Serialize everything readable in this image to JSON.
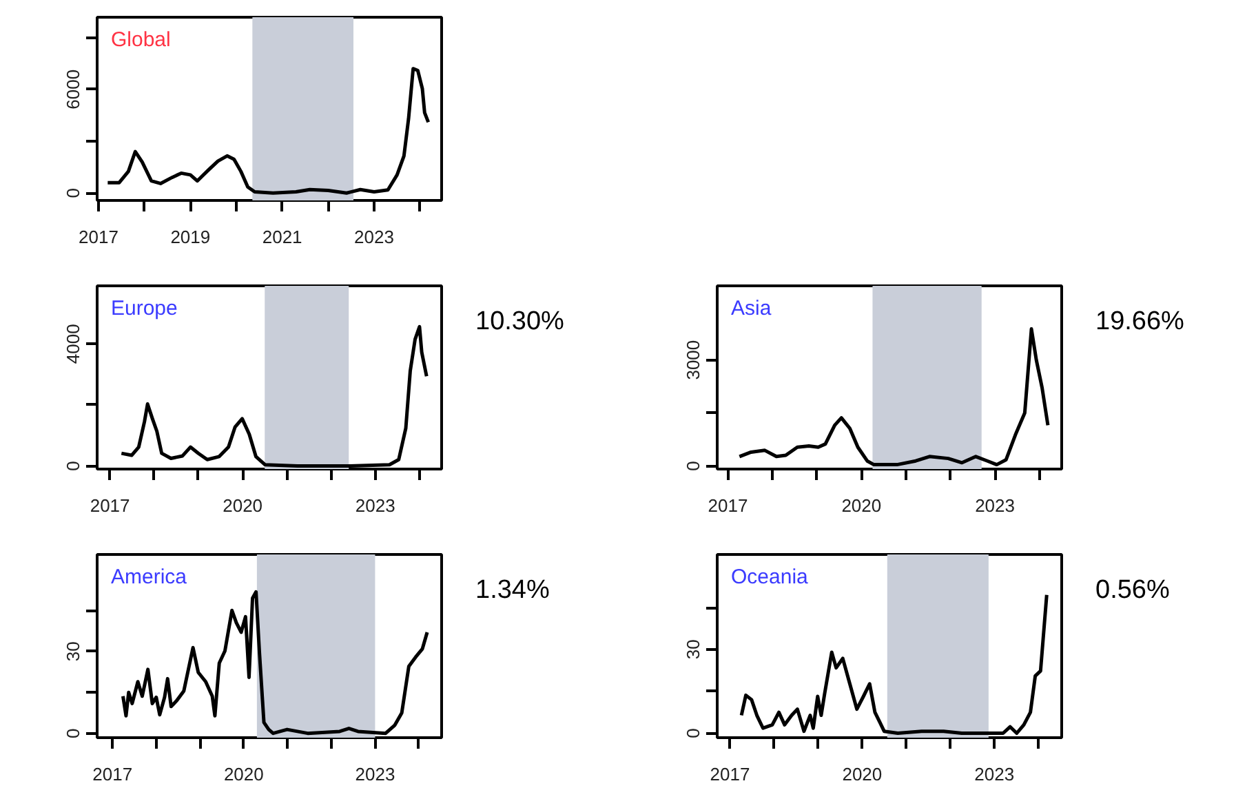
{
  "chart_data": [
    {
      "type": "line",
      "title": "Global",
      "xlim": [
        2016.97,
        2024.47
      ],
      "ylim": [
        -430,
        10180
      ],
      "xticks": [
        2017,
        {
          "value": 2018,
          "label": null
        },
        2019,
        {
          "value": 2020,
          "label": null
        },
        2021,
        {
          "value": 2022,
          "label": null
        },
        2023,
        {
          "value": 2024,
          "label": null
        }
      ],
      "yticks": [
        0,
        {
          "value": 3000,
          "label": null
        },
        6000,
        {
          "value": 9000,
          "label": null
        }
      ],
      "grid": false,
      "bands": [
        {
          "axis": "x",
          "from": 2020.35,
          "to": 2022.55,
          "color": "#c9ced9"
        }
      ],
      "series": [
        {
          "color": "#000000",
          "x": [
            2017.2,
            2017.45,
            2017.65,
            2017.8,
            2017.95,
            2018.15,
            2018.35,
            2018.6,
            2018.8,
            2019.0,
            2019.15,
            2019.4,
            2019.6,
            2019.8,
            2019.95,
            2020.1,
            2020.25,
            2020.4,
            2020.8,
            2021.3,
            2021.6,
            2022.0,
            2022.4,
            2022.7,
            2023.0,
            2023.3,
            2023.5,
            2023.65,
            2023.75,
            2023.85,
            2023.95,
            2024.05,
            2024.1,
            2024.18
          ],
          "values": [
            600,
            600,
            1250,
            2400,
            1800,
            700,
            550,
            900,
            1150,
            1050,
            700,
            1350,
            1850,
            2150,
            1950,
            1250,
            350,
            70,
            0,
            70,
            200,
            150,
            0,
            200,
            70,
            180,
            1050,
            2150,
            4300,
            7200,
            7100,
            6050,
            4650,
            4100
          ]
        }
      ]
    },
    {
      "type": "line",
      "title": "Europe",
      "annotations": [
        "10.30%"
      ],
      "xlim": [
        2016.71,
        2024.5
      ],
      "ylim": [
        -100,
        5900
      ],
      "xticks": [
        2017,
        {
          "value": 2018,
          "label": null
        },
        {
          "value": 2019,
          "label": null
        },
        2020,
        {
          "value": 2021,
          "label": null
        },
        {
          "value": 2022,
          "label": null
        },
        2023,
        {
          "value": 2024,
          "label": null
        }
      ],
      "yticks": [
        0,
        {
          "value": 2000,
          "label": null
        },
        4000
      ],
      "grid": false,
      "bands": [
        {
          "axis": "x",
          "from": 2020.5,
          "to": 2022.4,
          "color": "#c9ced9"
        }
      ],
      "series": [
        {
          "color": "#000000",
          "x": [
            2017.26,
            2017.49,
            2017.65,
            2017.78,
            2017.85,
            2017.96,
            2018.06,
            2018.17,
            2018.38,
            2018.64,
            2018.82,
            2019.0,
            2019.2,
            2019.47,
            2019.68,
            2019.83,
            2019.99,
            2020.15,
            2020.3,
            2020.51,
            2021.24,
            2022.39,
            2023.32,
            2023.53,
            2023.69,
            2023.79,
            2023.9,
            2024.0,
            2024.05,
            2024.16
          ],
          "values": [
            415,
            350,
            620,
            1450,
            2030,
            1550,
            1140,
            415,
            250,
            330,
            620,
            415,
            210,
            310,
            620,
            1280,
            1550,
            1040,
            310,
            40,
            0,
            0,
            40,
            210,
            1240,
            3110,
            4150,
            4560,
            3730,
            2940
          ]
        }
      ]
    },
    {
      "type": "line",
      "title": "Asia",
      "annotations": [
        "19.66%"
      ],
      "xlim": [
        2016.76,
        2024.5
      ],
      "ylim": [
        -90,
        5100
      ],
      "xticks": [
        2017,
        {
          "value": 2018,
          "label": null
        },
        {
          "value": 2019,
          "label": null
        },
        2020,
        {
          "value": 2021,
          "label": null
        },
        {
          "value": 2022,
          "label": null
        },
        2023,
        {
          "value": 2024,
          "label": null
        }
      ],
      "yticks": [
        0,
        {
          "value": 1500,
          "label": null
        },
        3000
      ],
      "grid": false,
      "bands": [
        {
          "axis": "x",
          "from": 2020.25,
          "to": 2022.7,
          "color": "#c9ced9"
        }
      ],
      "series": [
        {
          "color": "#000000",
          "x": [
            2017.26,
            2017.52,
            2017.83,
            2018.09,
            2018.3,
            2018.56,
            2018.82,
            2019.03,
            2019.19,
            2019.4,
            2019.55,
            2019.74,
            2019.92,
            2020.13,
            2020.28,
            2020.8,
            2021.22,
            2021.53,
            2021.95,
            2022.26,
            2022.57,
            2022.83,
            2023.04,
            2023.25,
            2023.46,
            2023.67,
            2023.82,
            2023.93,
            2024.06,
            2024.19
          ],
          "values": [
            265,
            390,
            440,
            265,
            300,
            530,
            565,
            530,
            620,
            1150,
            1360,
            1060,
            530,
            140,
            35,
            35,
            140,
            265,
            210,
            90,
            265,
            140,
            35,
            175,
            880,
            1500,
            3880,
            3000,
            2210,
            1150
          ]
        }
      ]
    },
    {
      "type": "line",
      "title": "America",
      "annotations": [
        "1.34%"
      ],
      "xlim": [
        2016.65,
        2024.52
      ],
      "ylim": [
        -1.6,
        65.5
      ],
      "xticks": [
        2017,
        {
          "value": 2018,
          "label": null
        },
        {
          "value": 2019,
          "label": null
        },
        2020,
        {
          "value": 2021,
          "label": null
        },
        {
          "value": 2022,
          "label": null
        },
        2023,
        {
          "value": 2024,
          "label": null
        }
      ],
      "yticks": [
        0,
        {
          "value": 15,
          "label": null
        },
        30,
        {
          "value": 45,
          "label": null
        }
      ],
      "grid": false,
      "bands": [
        {
          "axis": "x",
          "from": 2020.3,
          "to": 2023.0,
          "color": "#c9ced9"
        }
      ],
      "series": [
        {
          "color": "#000000",
          "x": [
            2017.24,
            2017.31,
            2017.37,
            2017.45,
            2017.58,
            2017.68,
            2017.81,
            2017.91,
            2018.0,
            2018.08,
            2018.19,
            2018.26,
            2018.34,
            2018.47,
            2018.63,
            2018.84,
            2018.96,
            2019.13,
            2019.28,
            2019.34,
            2019.44,
            2019.57,
            2019.73,
            2019.83,
            2019.94,
            2020.04,
            2020.12,
            2020.2,
            2020.28,
            2020.36,
            2020.46,
            2020.57,
            2020.67,
            2020.99,
            2021.46,
            2022.19,
            2022.4,
            2022.61,
            2023.24,
            2023.45,
            2023.61,
            2023.77,
            2023.93,
            2024.08,
            2024.19
          ],
          "values": [
            13.6,
            6.4,
            15,
            10.9,
            18.9,
            13.6,
            23.4,
            10.9,
            13.2,
            6.8,
            13.2,
            20,
            9.8,
            12,
            15.5,
            31.4,
            22.3,
            18.9,
            13.6,
            6.4,
            25.7,
            30.2,
            45,
            40.5,
            37,
            42.7,
            20.5,
            49.5,
            51.8,
            29,
            4,
            1.4,
            0,
            1.4,
            0,
            0.7,
            1.8,
            0.7,
            0,
            3,
            7.5,
            24.5,
            28,
            30.9,
            37
          ]
        }
      ]
    },
    {
      "type": "line",
      "title": "Oceania",
      "annotations": [
        "0.56%"
      ],
      "xlim": [
        2016.71,
        2024.53
      ],
      "ylim": [
        -1.6,
        64
      ],
      "xticks": [
        2017,
        {
          "value": 2018,
          "label": null
        },
        {
          "value": 2019,
          "label": null
        },
        2020,
        {
          "value": 2021,
          "label": null
        },
        {
          "value": 2022,
          "label": null
        },
        2023,
        {
          "value": 2024,
          "label": null
        }
      ],
      "yticks": [
        0,
        {
          "value": 15,
          "label": null
        },
        30,
        {
          "value": 45,
          "label": null
        }
      ],
      "grid": false,
      "bands": [
        {
          "axis": "x",
          "from": 2020.57,
          "to": 2022.87,
          "color": "#c9ced9"
        }
      ],
      "series": [
        {
          "color": "#000000",
          "x": [
            2017.26,
            2017.36,
            2017.49,
            2017.61,
            2017.75,
            2017.96,
            2018.11,
            2018.24,
            2018.4,
            2018.53,
            2018.68,
            2018.82,
            2018.89,
            2018.99,
            2019.07,
            2019.15,
            2019.31,
            2019.41,
            2019.56,
            2019.72,
            2019.88,
            2020.03,
            2020.17,
            2020.29,
            2020.4,
            2020.5,
            2020.81,
            2021.35,
            2021.85,
            2022.26,
            2023.2,
            2023.36,
            2023.51,
            2023.67,
            2023.82,
            2023.93,
            2024.05,
            2024.19
          ],
          "values": [
            6.4,
            13.6,
            12,
            6.4,
            1.8,
            3,
            7.5,
            3,
            6.4,
            8.6,
            0.7,
            6.4,
            1.8,
            13.2,
            6.4,
            14.3,
            29,
            23.4,
            26.8,
            17.7,
            8.6,
            13.2,
            17.7,
            7.5,
            4,
            0.7,
            0,
            0.7,
            0.7,
            0,
            0,
            2.3,
            0,
            3,
            7.5,
            20.5,
            22.3,
            49.5
          ]
        }
      ]
    }
  ]
}
